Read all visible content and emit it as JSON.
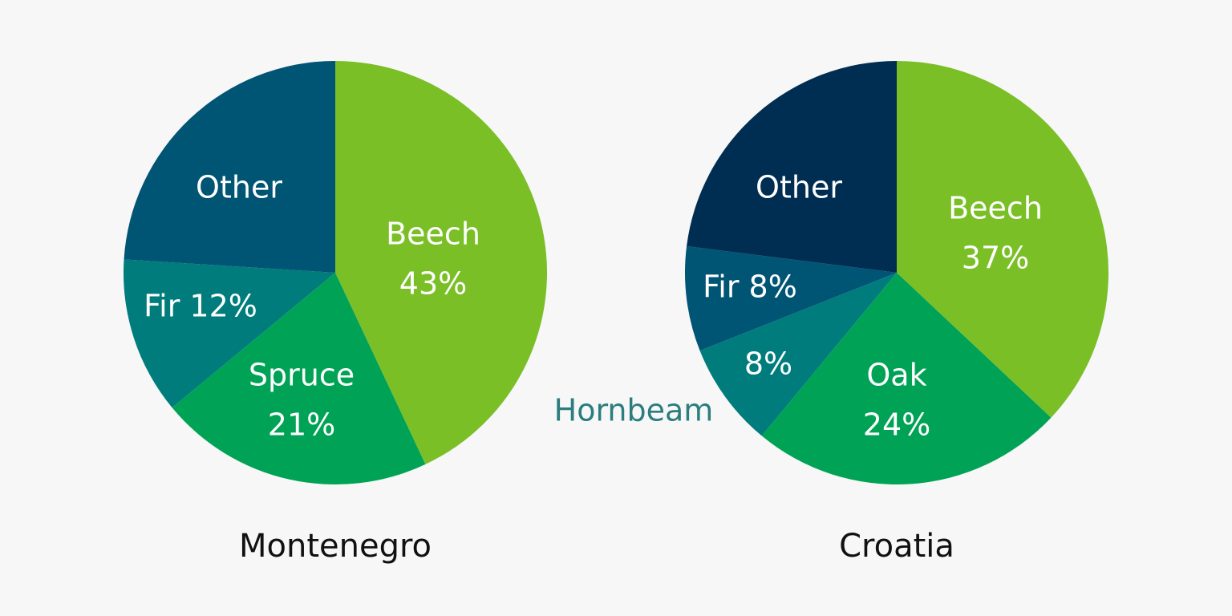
{
  "chart_data": [
    {
      "type": "pie",
      "title": "Montenegro",
      "slices": [
        {
          "name": "Beech",
          "value": 43,
          "value_label": "43%",
          "color": "#7abf26"
        },
        {
          "name": "Spruce",
          "value": 21,
          "value_label": "21%",
          "color": "#00a356"
        },
        {
          "name": "Fir",
          "value": 12,
          "value_label": "12%",
          "color": "#007c7c"
        },
        {
          "name": "Other",
          "value": 24,
          "value_label": "",
          "color": "#005474"
        }
      ]
    },
    {
      "type": "pie",
      "title": "Croatia",
      "slices": [
        {
          "name": "Beech",
          "value": 37,
          "value_label": "37%",
          "color": "#7abf26"
        },
        {
          "name": "Oak",
          "value": 24,
          "value_label": "24%",
          "color": "#00a356"
        },
        {
          "name": "Hornbeam",
          "value": 8,
          "value_label": "8%",
          "color": "#007c7c"
        },
        {
          "name": "Fir",
          "value": 8,
          "value_label": "8%",
          "color": "#005474"
        },
        {
          "name": "Other",
          "value": 23,
          "value_label": "",
          "color": "#002e52"
        }
      ]
    }
  ]
}
